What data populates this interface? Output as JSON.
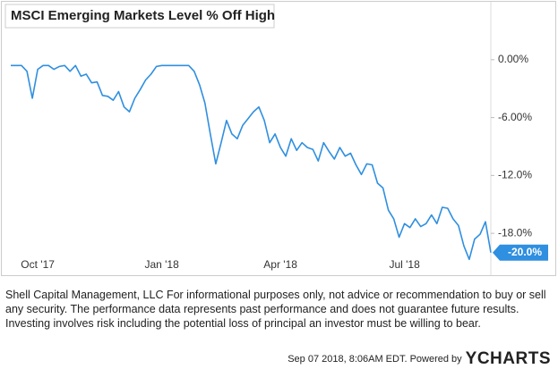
{
  "chart_data": {
    "type": "line",
    "title": "MSCI Emerging Markets Level % Off High",
    "categories": [
      null,
      null,
      null,
      null,
      null,
      "Oct '17",
      null,
      null,
      null,
      null,
      null,
      null,
      null,
      null,
      null,
      null,
      null,
      null,
      null,
      null,
      null,
      null,
      null,
      null,
      null,
      null,
      null,
      null,
      "Jan '18",
      null,
      null,
      null,
      null,
      null,
      null,
      null,
      null,
      null,
      null,
      null,
      null,
      null,
      null,
      null,
      null,
      null,
      null,
      null,
      null,
      null,
      "Apr '18",
      null,
      null,
      null,
      null,
      null,
      null,
      null,
      null,
      null,
      null,
      null,
      null,
      null,
      null,
      null,
      null,
      null,
      null,
      null,
      null,
      null,
      null,
      "Jul '18",
      null,
      null,
      null,
      null,
      null,
      null,
      null,
      null,
      null,
      null,
      null,
      null,
      null,
      null,
      null,
      null
    ],
    "values": [
      -0.6,
      -0.6,
      -0.6,
      -1.2,
      -4.0,
      -1.0,
      -0.6,
      -0.6,
      -1.0,
      -0.7,
      -0.6,
      -1.2,
      -0.6,
      -1.7,
      -1.5,
      -2.4,
      -2.3,
      -3.7,
      -3.8,
      -4.2,
      -3.3,
      -4.9,
      -5.4,
      -4.0,
      -3.1,
      -2.1,
      -1.5,
      -0.7,
      -0.6,
      -0.6,
      -0.6,
      -0.6,
      -0.6,
      -0.6,
      -1.2,
      -2.6,
      -4.5,
      -7.7,
      -10.8,
      -8.6,
      -6.3,
      -7.7,
      -8.2,
      -6.8,
      -6.1,
      -5.4,
      -4.9,
      -6.3,
      -8.6,
      -7.7,
      -9.1,
      -10.0,
      -8.2,
      -9.4,
      -8.6,
      -9.1,
      -9.3,
      -10.5,
      -8.6,
      -9.5,
      -10.3,
      -9.1,
      -10.0,
      -9.7,
      -10.9,
      -11.9,
      -10.8,
      -10.9,
      -12.8,
      -13.3,
      -15.6,
      -16.5,
      -18.4,
      -17.0,
      -17.4,
      -16.5,
      -17.3,
      -17.0,
      -16.1,
      -17.0,
      -15.3,
      -15.4,
      -16.5,
      -17.2,
      -19.3,
      -20.7,
      -18.6,
      -18.1,
      -16.8,
      -20.0
    ],
    "value_labels": [
      null,
      null,
      null,
      null,
      null,
      null,
      null,
      null,
      null,
      null,
      null,
      null,
      null,
      null,
      null,
      null,
      null,
      null,
      null,
      null,
      null,
      null,
      null,
      null,
      null,
      null,
      null,
      null,
      null,
      null,
      null,
      null,
      null,
      null,
      null,
      null,
      null,
      null,
      null,
      null,
      null,
      null,
      null,
      null,
      null,
      null,
      null,
      null,
      null,
      null,
      null,
      null,
      null,
      null,
      null,
      null,
      null,
      null,
      null,
      null,
      null,
      null,
      null,
      null,
      null,
      null,
      null,
      null,
      null,
      null,
      null,
      null,
      null,
      null,
      null,
      null,
      null,
      null,
      null,
      null,
      null,
      null,
      null,
      null,
      null,
      null,
      null,
      null,
      null,
      "-20.0%"
    ],
    "color": "#2f8fe0",
    "ylim": [
      -21.6,
      2.3
    ],
    "yticks": [
      {
        "value": 0,
        "label": "0.00%"
      },
      {
        "value": -6,
        "label": "-6.00%"
      },
      {
        "value": -12,
        "label": "-12.0%"
      },
      {
        "value": -18,
        "label": "-18.0%"
      }
    ],
    "grid": false
  },
  "disclaimer": "Shell Capital Management, LLC For informational purposes only, not advice or recommendation to buy or sell any security. The performance data represents past performance and does not guarantee future results. Investing involves risk including the potential loss of principal an investor must be willing to bear.",
  "footer": {
    "timestamp": "Sep 07 2018, 8:06AM EDT.  Powered by",
    "brand": "YCHARTS"
  }
}
